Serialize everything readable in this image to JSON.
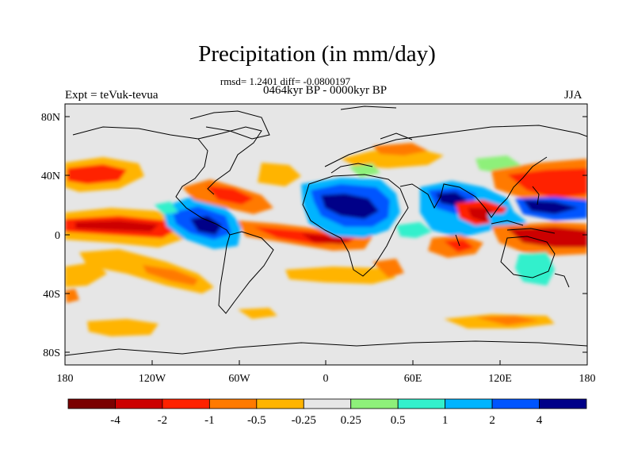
{
  "title": "Precipitation (in mm/day)",
  "stats": "rmsd= 1.2401 diff= -0.0800197",
  "period": "0464kyr BP - 0000kyr BP",
  "experiment": "Expt = teVuk-tevua",
  "season": "JJA",
  "axes": {
    "lat_ticks": [
      "80N",
      "40N",
      "0",
      "40S",
      "80S"
    ],
    "lon_ticks": [
      "180",
      "120W",
      "60W",
      "0",
      "60E",
      "120E",
      "180"
    ]
  },
  "colorbar": {
    "colors": [
      "#7a0000",
      "#cc0000",
      "#ff2200",
      "#ff7a00",
      "#ffb400",
      "#e6e6e6",
      "#8ef07a",
      "#33f0cc",
      "#00b4ff",
      "#0055ff",
      "#000088"
    ],
    "labels": [
      "-4",
      "-2",
      "-1",
      "-0.5",
      "-0.25",
      "0.25",
      "0.5",
      "1",
      "2",
      "4"
    ]
  }
}
